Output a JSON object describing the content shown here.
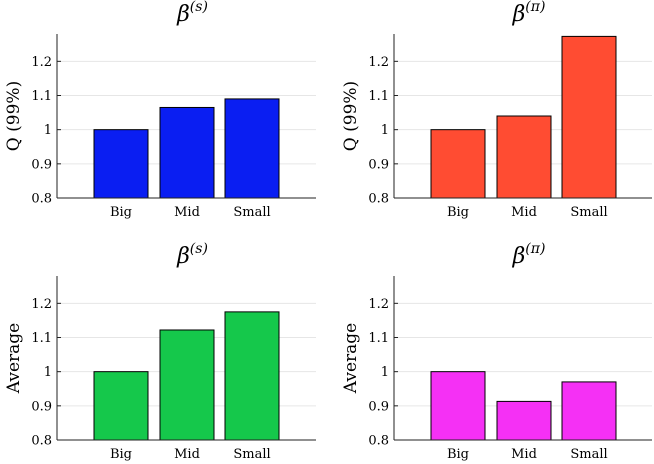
{
  "chart_data": [
    {
      "type": "bar",
      "title": "β",
      "title_sup": "(s)",
      "ylabel": "Q (99%)",
      "categories": [
        "Big",
        "Mid",
        "Small"
      ],
      "values": [
        1.0,
        1.065,
        1.09
      ],
      "ylim": [
        0.8,
        1.28
      ],
      "yticks": [
        "0.8",
        "0.9",
        "1",
        "1.1",
        "1.2"
      ],
      "ytick_values": [
        0.8,
        0.9,
        1.0,
        1.1,
        1.2
      ],
      "color": "#0a1ef2",
      "grid": true
    },
    {
      "type": "bar",
      "title": "β",
      "title_sup": "(π)",
      "ylabel": "Q (99%)",
      "categories": [
        "Big",
        "Mid",
        "Small"
      ],
      "values": [
        1.0,
        1.04,
        1.273
      ],
      "ylim": [
        0.8,
        1.28
      ],
      "yticks": [
        "0.8",
        "0.9",
        "1",
        "1.1",
        "1.2"
      ],
      "ytick_values": [
        0.8,
        0.9,
        1.0,
        1.1,
        1.2
      ],
      "color": "#ff4c32",
      "grid": true
    },
    {
      "type": "bar",
      "title": "β",
      "title_sup": "(s)",
      "ylabel": "Average",
      "categories": [
        "Big",
        "Mid",
        "Small"
      ],
      "values": [
        1.0,
        1.122,
        1.175
      ],
      "ylim": [
        0.8,
        1.28
      ],
      "yticks": [
        "0.8",
        "0.9",
        "1",
        "1.1",
        "1.2"
      ],
      "ytick_values": [
        0.8,
        0.9,
        1.0,
        1.1,
        1.2
      ],
      "color": "#15c84b",
      "grid": true
    },
    {
      "type": "bar",
      "title": "β",
      "title_sup": "(π)",
      "ylabel": "Average",
      "categories": [
        "Big",
        "Mid",
        "Small"
      ],
      "values": [
        1.0,
        0.913,
        0.97
      ],
      "ylim": [
        0.8,
        1.28
      ],
      "yticks": [
        "0.8",
        "0.9",
        "1",
        "1.1",
        "1.2"
      ],
      "ytick_values": [
        0.8,
        0.9,
        1.0,
        1.1,
        1.2
      ],
      "color": "#f530f5",
      "grid": true
    }
  ]
}
